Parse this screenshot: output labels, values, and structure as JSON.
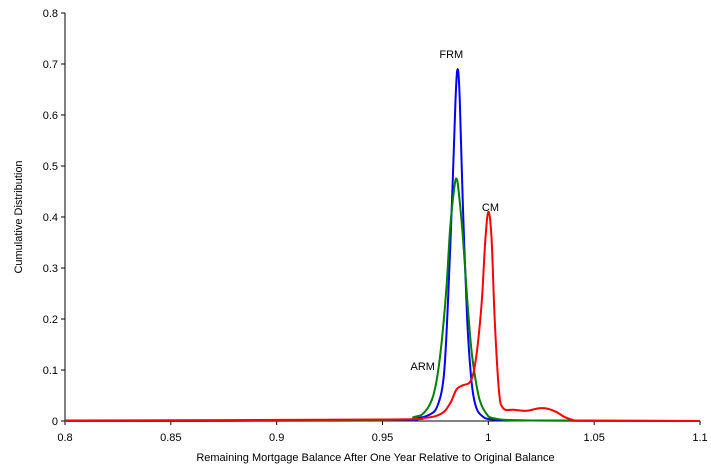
{
  "chart_data": {
    "type": "line",
    "title": "",
    "xlabel": "Remaining Mortgage Balance After One Year Relative to Original Balance",
    "ylabel": "Cumulative Distribution",
    "xlim": [
      0.8,
      1.1
    ],
    "ylim": [
      0,
      0.8
    ],
    "x_ticks": [
      0.8,
      0.85,
      0.9,
      0.95,
      1,
      1.05,
      1.1
    ],
    "x_tick_labels": [
      "0.8",
      "0.85",
      "0.9",
      "0.95",
      "1",
      "1.05",
      "1.1"
    ],
    "y_ticks": [
      0,
      0.1,
      0.2,
      0.3,
      0.4,
      0.5,
      0.6,
      0.7,
      0.8
    ],
    "y_tick_labels": [
      "0",
      "0.1",
      "0.2",
      "0.3",
      "0.4",
      "0.5",
      "0.6",
      "0.7",
      "0.8"
    ],
    "grid": false,
    "legend": "none",
    "series": [
      {
        "name": "FRM",
        "color": "#0000ff",
        "points": [
          [
            0.8,
            0.0
          ],
          [
            0.95,
            0.001
          ],
          [
            0.965,
            0.005
          ],
          [
            0.972,
            0.012
          ],
          [
            0.976,
            0.03
          ],
          [
            0.979,
            0.09
          ],
          [
            0.981,
            0.24
          ],
          [
            0.983,
            0.45
          ],
          [
            0.9845,
            0.63
          ],
          [
            0.9855,
            0.69
          ],
          [
            0.9865,
            0.63
          ],
          [
            0.988,
            0.42
          ],
          [
            0.99,
            0.2
          ],
          [
            0.992,
            0.08
          ],
          [
            0.994,
            0.03
          ],
          [
            0.997,
            0.01
          ],
          [
            1.002,
            0.003
          ],
          [
            1.02,
            0.001
          ],
          [
            1.1,
            0.0
          ]
        ]
      },
      {
        "name": "ARM",
        "color": "#008000",
        "points": [
          [
            0.8,
            0.0
          ],
          [
            0.95,
            0.002
          ],
          [
            0.965,
            0.008
          ],
          [
            0.97,
            0.018
          ],
          [
            0.974,
            0.05
          ],
          [
            0.977,
            0.12
          ],
          [
            0.98,
            0.25
          ],
          [
            0.982,
            0.38
          ],
          [
            0.984,
            0.46
          ],
          [
            0.985,
            0.475
          ],
          [
            0.986,
            0.45
          ],
          [
            0.988,
            0.36
          ],
          [
            0.99,
            0.24
          ],
          [
            0.992,
            0.14
          ],
          [
            0.994,
            0.08
          ],
          [
            0.996,
            0.04
          ],
          [
            0.999,
            0.015
          ],
          [
            1.003,
            0.005
          ],
          [
            1.02,
            0.001
          ],
          [
            1.1,
            0.0
          ]
        ]
      },
      {
        "name": "CM",
        "color": "#ff0000",
        "points": [
          [
            0.8,
            0.001
          ],
          [
            0.95,
            0.003
          ],
          [
            0.97,
            0.006
          ],
          [
            0.978,
            0.015
          ],
          [
            0.982,
            0.035
          ],
          [
            0.985,
            0.062
          ],
          [
            0.988,
            0.07
          ],
          [
            0.991,
            0.075
          ],
          [
            0.993,
            0.095
          ],
          [
            0.995,
            0.15
          ],
          [
            0.997,
            0.24
          ],
          [
            0.9985,
            0.35
          ],
          [
            1.0,
            0.41
          ],
          [
            1.0015,
            0.36
          ],
          [
            1.003,
            0.2
          ],
          [
            1.005,
            0.06
          ],
          [
            1.007,
            0.025
          ],
          [
            1.012,
            0.022
          ],
          [
            1.018,
            0.02
          ],
          [
            1.024,
            0.025
          ],
          [
            1.028,
            0.024
          ],
          [
            1.032,
            0.018
          ],
          [
            1.036,
            0.008
          ],
          [
            1.04,
            0.002
          ],
          [
            1.045,
            0.0005
          ],
          [
            1.1,
            0.0
          ]
        ]
      }
    ],
    "annotations": [
      {
        "text": "FRM",
        "x": 0.9825,
        "y": 0.72
      },
      {
        "text": "CM",
        "x": 1.001,
        "y": 0.42
      },
      {
        "text": "ARM",
        "x": 0.969,
        "y": 0.108
      }
    ]
  }
}
